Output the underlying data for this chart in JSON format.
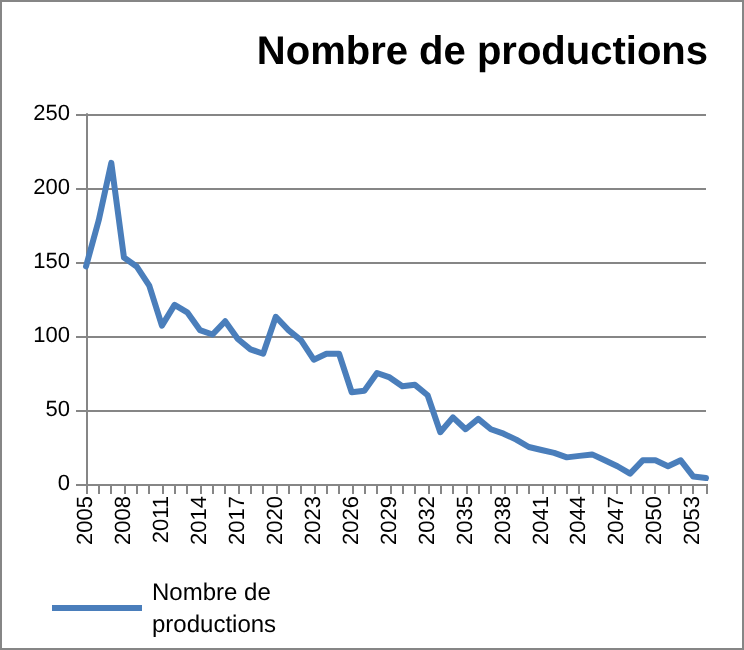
{
  "chart_data": {
    "type": "line",
    "title": "Nombre de productions",
    "categories": [
      "2005",
      null,
      null,
      "2008",
      null,
      null,
      "2011",
      null,
      null,
      "2014",
      null,
      null,
      "2017",
      null,
      null,
      "2020",
      null,
      null,
      "2023",
      null,
      null,
      "2026",
      null,
      null,
      "2029",
      null,
      null,
      "2032",
      null,
      null,
      "2035",
      null,
      null,
      "2038",
      null,
      null,
      "2041",
      null,
      null,
      "2044",
      null,
      null,
      "2047",
      null,
      null,
      "2050",
      null,
      null,
      "2053",
      null
    ],
    "series": [
      {
        "name": "Nombre de productions",
        "color": "#4a7ebb",
        "values": [
          147,
          178,
          217,
          153,
          147,
          134,
          107,
          121,
          116,
          104,
          101,
          110,
          98,
          91,
          88,
          113,
          104,
          97,
          84,
          88,
          88,
          62,
          63,
          75,
          72,
          66,
          67,
          60,
          35,
          45,
          37,
          44,
          37,
          34,
          30,
          25,
          23,
          21,
          18,
          19,
          20,
          16,
          12,
          7,
          16,
          16,
          12,
          16,
          5,
          4
        ]
      }
    ],
    "ylim": [
      0,
      250
    ],
    "yticks": [
      0,
      50,
      100,
      150,
      200,
      250
    ],
    "grid": "y",
    "legend": "bottom left",
    "marker": "none",
    "line_style": "solid"
  }
}
